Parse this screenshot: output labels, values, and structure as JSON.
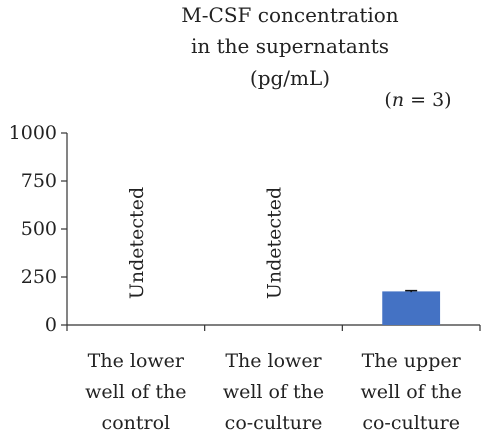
{
  "chart_data": {
    "type": "bar",
    "title_lines": [
      "M-CSF concentration",
      "in the supernatants",
      "(pg/mL)"
    ],
    "sample_size": {
      "prefix": "(",
      "var": "n",
      "rest": " = 3)"
    },
    "categories": [
      [
        "The lower",
        "well of the",
        "control"
      ],
      [
        "The lower",
        "well of the",
        "co-culture"
      ],
      [
        "The upper",
        "well of the",
        "co-culture"
      ]
    ],
    "values": [
      null,
      null,
      175
    ],
    "error": [
      null,
      null,
      4
    ],
    "bar_annotations": [
      "Undetected",
      "Undetected",
      ""
    ],
    "ylim": [
      0,
      1000
    ],
    "yticks": [
      0,
      250,
      500,
      750,
      1000
    ],
    "xlabel": "",
    "ylabel": "",
    "grid": false,
    "bar_color": "#4472c4",
    "axis_color": "#333333"
  }
}
